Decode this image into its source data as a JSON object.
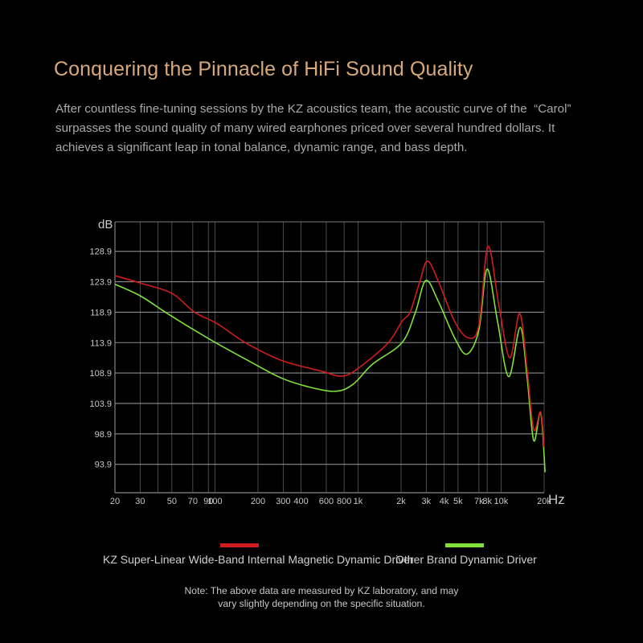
{
  "header": {
    "title": "Conquering the Pinnacle of HiFi Sound Quality",
    "description_lines": [
      "After countless fine-tuning sessions by the KZ acoustics team, the acoustic curve of the  “Carol”",
      "surpasses the sound quality of many wired earphones priced over several hundred dollars. It",
      "achieves a significant leap in tonal balance, dynamic range, and bass depth."
    ]
  },
  "colors": {
    "background": "#000000",
    "title": "#d7a87a",
    "grid": "#7a7a7a",
    "kz_series": "#d01c1c",
    "other_series": "#7ee23a"
  },
  "legend": {
    "kz_label": "KZ Super-Linear Wide-Band Internal Magnetic Dynamic Driver",
    "other_label": "Other Brand Dynamic Driver"
  },
  "note": {
    "lines": [
      "Note: The above data are measured by KZ laboratory, and may",
      "vary slightly depending on the specific situation."
    ]
  },
  "chart_data": {
    "type": "line",
    "title": "",
    "xlabel": "Hz",
    "ylabel": "dB",
    "xscale": "log",
    "xlim": [
      20,
      20000
    ],
    "ylim": [
      89.4,
      133.4
    ],
    "grid": true,
    "legend_position": "bottom",
    "x_ticks": [
      {
        "value": 20,
        "label": "20"
      },
      {
        "value": 30,
        "label": "30"
      },
      {
        "value": 40,
        "label": ""
      },
      {
        "value": 50,
        "label": "50"
      },
      {
        "value": 70,
        "label": "70"
      },
      {
        "value": 90,
        "label": "90"
      },
      {
        "value": 100,
        "label": "100"
      },
      {
        "value": 200,
        "label": "200"
      },
      {
        "value": 300,
        "label": "300"
      },
      {
        "value": 400,
        "label": "400"
      },
      {
        "value": 600,
        "label": "600"
      },
      {
        "value": 800,
        "label": "800"
      },
      {
        "value": 1000,
        "label": "1k"
      },
      {
        "value": 2000,
        "label": "2k"
      },
      {
        "value": 3000,
        "label": "3k"
      },
      {
        "value": 4000,
        "label": "4k"
      },
      {
        "value": 5000,
        "label": "5k"
      },
      {
        "value": 7000,
        "label": "7k"
      },
      {
        "value": 8000,
        "label": "8k"
      },
      {
        "value": 10000,
        "label": "10k"
      },
      {
        "value": 20000,
        "label": "20k"
      }
    ],
    "y_ticks": [
      128.9,
      123.9,
      118.9,
      113.9,
      108.9,
      103.9,
      98.9,
      93.9
    ],
    "series": [
      {
        "name": "KZ Super-Linear Wide-Band Internal Magnetic Dynamic Driver",
        "color": "#d01c1c",
        "points": [
          [
            20,
            124.9
          ],
          [
            30,
            123.7
          ],
          [
            50,
            122.0
          ],
          [
            72,
            118.9
          ],
          [
            104,
            117.0
          ],
          [
            163,
            113.9
          ],
          [
            290,
            111.0
          ],
          [
            555,
            109.2
          ],
          [
            785,
            108.4
          ],
          [
            1060,
            110.1
          ],
          [
            1630,
            113.9
          ],
          [
            2030,
            117.4
          ],
          [
            2320,
            119.0
          ],
          [
            2710,
            124.0
          ],
          [
            3060,
            127.3
          ],
          [
            3640,
            124.0
          ],
          [
            4730,
            117.4
          ],
          [
            5880,
            114.7
          ],
          [
            7000,
            116.7
          ],
          [
            8100,
            129.7
          ],
          [
            9660,
            120.0
          ],
          [
            11500,
            111.4
          ],
          [
            13500,
            118.7
          ],
          [
            15200,
            109.5
          ],
          [
            16900,
            99.6
          ],
          [
            18900,
            102.5
          ],
          [
            20000,
            96.7
          ]
        ]
      },
      {
        "name": "Other Brand Dynamic Driver",
        "color": "#7ee23a",
        "points": [
          [
            20,
            123.5
          ],
          [
            30,
            121.6
          ],
          [
            45,
            118.9
          ],
          [
            70,
            116.1
          ],
          [
            101,
            113.9
          ],
          [
            166,
            111.1
          ],
          [
            290,
            108.1
          ],
          [
            455,
            106.6
          ],
          [
            700,
            105.9
          ],
          [
            930,
            107.1
          ],
          [
            1255,
            110.3
          ],
          [
            2030,
            113.9
          ],
          [
            2520,
            118.9
          ],
          [
            2980,
            124.1
          ],
          [
            3640,
            120.7
          ],
          [
            4730,
            114.7
          ],
          [
            5770,
            112.0
          ],
          [
            7000,
            116.0
          ],
          [
            7980,
            126.0
          ],
          [
            9450,
            117.4
          ],
          [
            11300,
            108.3
          ],
          [
            13600,
            116.4
          ],
          [
            15200,
            108.2
          ],
          [
            16900,
            97.8
          ],
          [
            18900,
            102.4
          ],
          [
            20300,
            92.6
          ]
        ]
      }
    ]
  }
}
